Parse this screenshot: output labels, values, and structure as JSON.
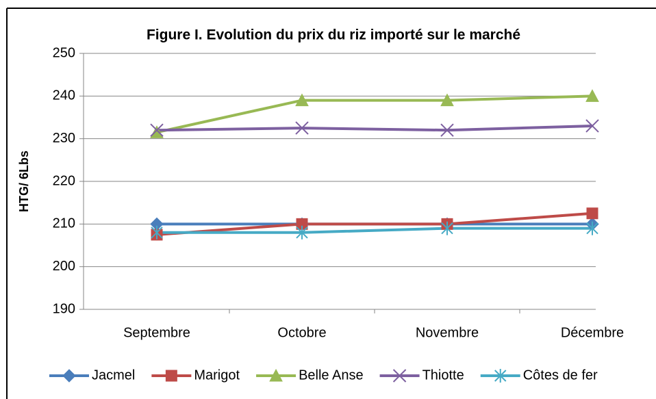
{
  "chart_data": {
    "type": "line",
    "title": "Figure I. Evolution du prix du riz importé sur le marché",
    "ylabel": "HTG/ 6Lbs",
    "categories": [
      "Septembre",
      "Octobre",
      "Novembre",
      "Décembre"
    ],
    "series": [
      {
        "name": "Jacmel",
        "color": "#4a7ebb",
        "marker": "diamond",
        "values": [
          210,
          210,
          210,
          210
        ]
      },
      {
        "name": "Marigot",
        "color": "#be4b48",
        "marker": "square",
        "values": [
          207.5,
          210,
          210,
          212.5
        ]
      },
      {
        "name": "Belle Anse",
        "color": "#98b954",
        "marker": "triangle",
        "values": [
          231.5,
          239,
          239,
          240
        ]
      },
      {
        "name": "Thiotte",
        "color": "#7d60a0",
        "marker": "x",
        "values": [
          232,
          232.5,
          232,
          233
        ]
      },
      {
        "name": "Côtes de fer",
        "color": "#46aac5",
        "marker": "star",
        "values": [
          208,
          208,
          209,
          209
        ]
      }
    ],
    "ylim": [
      190,
      250
    ],
    "yticks": [
      190,
      200,
      210,
      220,
      230,
      240,
      250
    ],
    "grid": true,
    "legend": "bottom"
  }
}
